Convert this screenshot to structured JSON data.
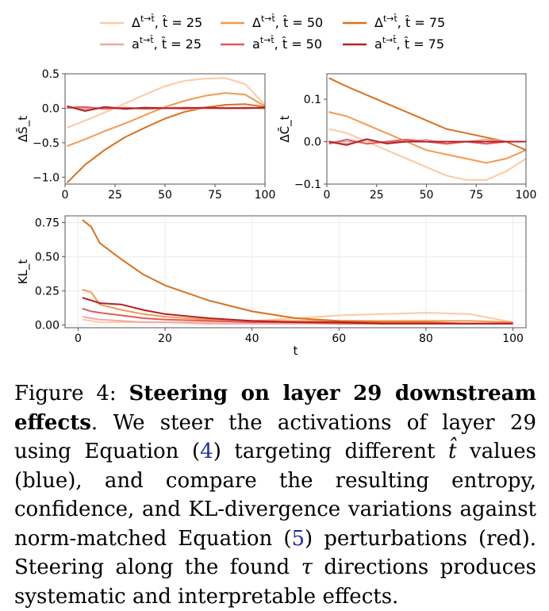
{
  "legend": [
    {
      "quantity": "Δ",
      "sup": "t→t̂",
      "param": "t̂ = 25",
      "color": "#fdc9a3"
    },
    {
      "quantity": "Δ",
      "sup": "t→t̂",
      "param": "t̂ = 50",
      "color": "#f5994f"
    },
    {
      "quantity": "Δ",
      "sup": "t→t̂",
      "param": "t̂ = 75",
      "color": "#d9711f"
    },
    {
      "quantity": "a",
      "sup": "t→t̂",
      "param": "t̂ = 25",
      "color": "#f2a6a7"
    },
    {
      "quantity": "a",
      "sup": "t→t̂",
      "param": "t̂ = 50",
      "color": "#e05b5b"
    },
    {
      "quantity": "a",
      "sup": "t→t̂",
      "param": "t̂ = 75",
      "color": "#b41f26"
    }
  ],
  "chart_data": [
    {
      "type": "line",
      "ylabel": "ΔS̄_t",
      "xlim": [
        0,
        100
      ],
      "ylim": [
        -1.1,
        0.5
      ],
      "xticks": [
        "0",
        "25",
        "50",
        "75",
        "100"
      ],
      "yticks": [
        "0.5",
        "0.0",
        "−0.5",
        "−1.0"
      ],
      "ytick_values": [
        0.5,
        0.0,
        -0.5,
        -1.0
      ],
      "zero_line": true,
      "x": [
        1,
        10,
        20,
        30,
        40,
        50,
        60,
        70,
        80,
        90,
        100
      ],
      "series": [
        {
          "color": "#fdc9a3",
          "values": [
            -0.28,
            -0.18,
            -0.06,
            0.07,
            0.2,
            0.32,
            0.4,
            0.43,
            0.44,
            0.35,
            0.05
          ]
        },
        {
          "color": "#f5994f",
          "values": [
            -0.55,
            -0.45,
            -0.33,
            -0.22,
            -0.1,
            0.02,
            0.11,
            0.18,
            0.22,
            0.2,
            0.03
          ]
        },
        {
          "color": "#d9711f",
          "values": [
            -1.08,
            -0.82,
            -0.6,
            -0.42,
            -0.28,
            -0.15,
            -0.05,
            0.01,
            0.05,
            0.06,
            0.02
          ]
        },
        {
          "color": "#f2a6a7",
          "values": [
            0.02,
            -0.02,
            0.01,
            -0.01,
            0.0,
            0.01,
            -0.01,
            0.0,
            0.01,
            0.0,
            0.0
          ]
        },
        {
          "color": "#e05b5b",
          "values": [
            0.01,
            0.02,
            -0.01,
            0.01,
            -0.01,
            0.0,
            0.01,
            0.0,
            0.0,
            0.01,
            0.0
          ]
        },
        {
          "color": "#b41f26",
          "values": [
            0.03,
            -0.04,
            0.02,
            -0.01,
            0.01,
            0.0,
            0.0,
            0.01,
            0.0,
            0.0,
            0.01
          ]
        }
      ]
    },
    {
      "type": "line",
      "ylabel": "ΔC̄_t",
      "xlim": [
        0,
        100
      ],
      "ylim": [
        -0.1,
        0.16
      ],
      "xticks": [
        "0",
        "25",
        "50",
        "75",
        "100"
      ],
      "yticks": [
        "0.1",
        "0.0",
        "−0.1"
      ],
      "ytick_values": [
        0.1,
        0.0,
        -0.1
      ],
      "zero_line": true,
      "x": [
        1,
        10,
        20,
        30,
        40,
        50,
        60,
        70,
        80,
        90,
        100
      ],
      "series": [
        {
          "color": "#fdc9a3",
          "values": [
            0.03,
            0.02,
            0.0,
            -0.02,
            -0.04,
            -0.06,
            -0.08,
            -0.09,
            -0.09,
            -0.07,
            -0.04
          ]
        },
        {
          "color": "#f5994f",
          "values": [
            0.07,
            0.06,
            0.04,
            0.02,
            0.0,
            -0.02,
            -0.03,
            -0.04,
            -0.05,
            -0.04,
            -0.02
          ]
        },
        {
          "color": "#d9711f",
          "values": [
            0.15,
            0.13,
            0.11,
            0.09,
            0.07,
            0.05,
            0.03,
            0.02,
            0.01,
            0.0,
            -0.02
          ]
        },
        {
          "color": "#f2a6a7",
          "values": [
            0.0,
            -0.005,
            0.005,
            -0.005,
            0.0,
            0.005,
            -0.005,
            0.0,
            0.005,
            0.0,
            0.0
          ]
        },
        {
          "color": "#e05b5b",
          "values": [
            -0.005,
            0.005,
            -0.005,
            0.0,
            0.005,
            0.0,
            -0.005,
            0.0,
            -0.005,
            0.0,
            0.0
          ]
        },
        {
          "color": "#b41f26",
          "values": [
            0.0,
            -0.008,
            0.006,
            -0.004,
            0.0,
            0.0,
            0.0,
            0.0,
            0.0,
            0.0,
            0.0
          ]
        }
      ]
    },
    {
      "type": "line",
      "ylabel": "KL_t",
      "xlabel": "t",
      "xlim": [
        -3,
        103
      ],
      "ylim": [
        -0.02,
        0.8
      ],
      "xticks": [
        "0",
        "20",
        "40",
        "60",
        "80",
        "100"
      ],
      "xtick_values": [
        0,
        20,
        40,
        60,
        80,
        100
      ],
      "yticks": [
        "0.75",
        "0.50",
        "0.25",
        "0.00"
      ],
      "ytick_values": [
        0.75,
        0.5,
        0.25,
        0.0
      ],
      "grid": true,
      "x": [
        1,
        3,
        5,
        10,
        15,
        20,
        30,
        40,
        50,
        60,
        70,
        80,
        90,
        100
      ],
      "series": [
        {
          "color": "#fdc9a3",
          "values": [
            0.04,
            0.03,
            0.02,
            0.02,
            0.02,
            0.02,
            0.02,
            0.03,
            0.05,
            0.07,
            0.08,
            0.09,
            0.08,
            0.02
          ]
        },
        {
          "color": "#f5994f",
          "values": [
            0.26,
            0.24,
            0.15,
            0.11,
            0.08,
            0.06,
            0.04,
            0.03,
            0.03,
            0.03,
            0.03,
            0.03,
            0.03,
            0.02
          ]
        },
        {
          "color": "#d9711f",
          "values": [
            0.77,
            0.72,
            0.6,
            0.48,
            0.37,
            0.29,
            0.18,
            0.1,
            0.05,
            0.03,
            0.02,
            0.02,
            0.01,
            0.01
          ]
        },
        {
          "color": "#f2a6a7",
          "values": [
            0.06,
            0.05,
            0.04,
            0.03,
            0.02,
            0.02,
            0.01,
            0.01,
            0.01,
            0.01,
            0.01,
            0.01,
            0.01,
            0.01
          ]
        },
        {
          "color": "#e05b5b",
          "values": [
            0.12,
            0.1,
            0.09,
            0.07,
            0.05,
            0.04,
            0.03,
            0.02,
            0.02,
            0.01,
            0.01,
            0.01,
            0.01,
            0.01
          ]
        },
        {
          "color": "#b41f26",
          "values": [
            0.2,
            0.18,
            0.16,
            0.15,
            0.11,
            0.08,
            0.05,
            0.03,
            0.02,
            0.02,
            0.01,
            0.01,
            0.01,
            0.01
          ]
        }
      ]
    }
  ],
  "caption": {
    "label": "Figure 4:",
    "title": "Steering on layer 29 downstream effects",
    "text_1": ". We steer the activations of layer 29 using Equation (",
    "eq_ref_1": "4",
    "text_2": ") targeting different ",
    "symbol_t_hat": "t̂",
    "text_3": " values (blue), and compare the resulting entropy, confidence, and KL-divergence variations against norm-matched Equation (",
    "eq_ref_2": "5",
    "text_4": ") perturbations (red). Steering along the found ",
    "symbol_tau": "τ",
    "text_5": " directions produces systematic and interpretable effects."
  }
}
